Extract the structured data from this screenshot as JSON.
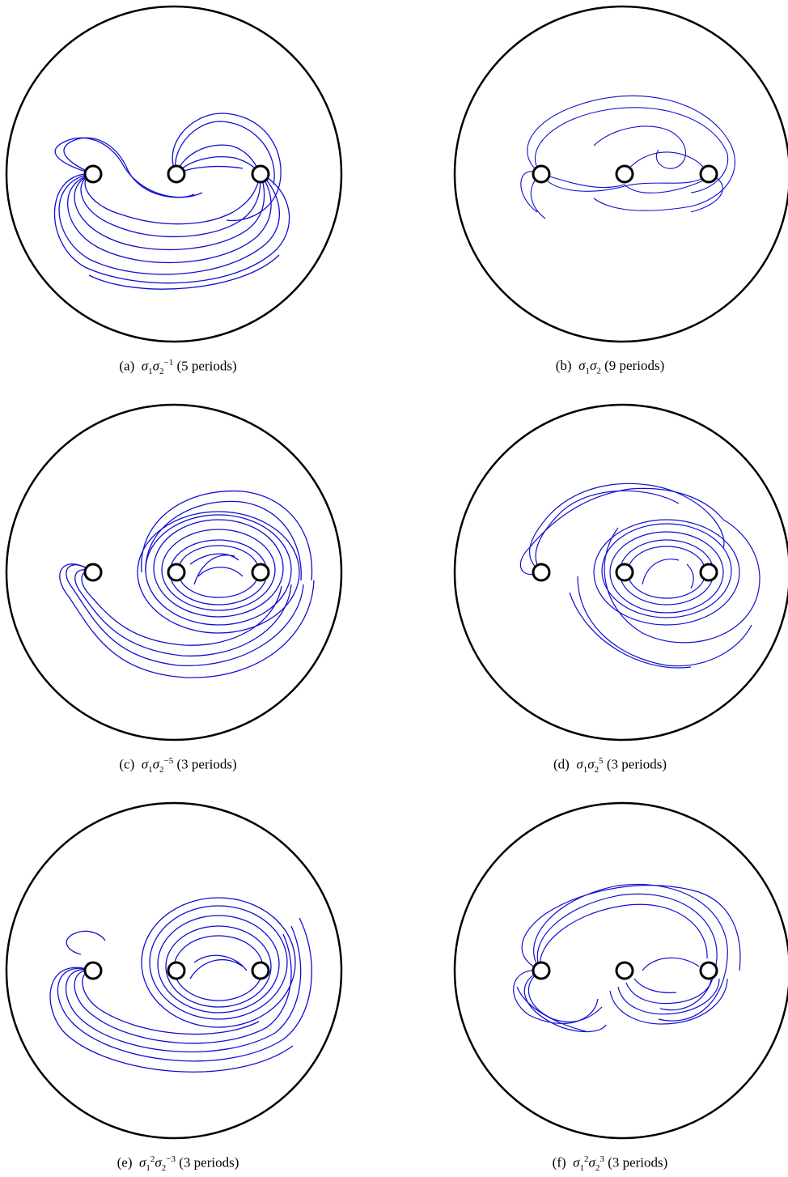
{
  "figure": {
    "stroke_color": "#1010d0",
    "boundary_color": "#000000",
    "panels": [
      {
        "id": "a",
        "label": "(a)",
        "braid_base": "σ",
        "periods_text": "(5 periods)",
        "word": [
          {
            "gen": "1",
            "exp": ""
          },
          {
            "gen": "2",
            "exp": "−1"
          }
        ]
      },
      {
        "id": "b",
        "label": "(b)",
        "braid_base": "σ",
        "periods_text": "(9 periods)",
        "word": [
          {
            "gen": "1",
            "exp": ""
          },
          {
            "gen": "2",
            "exp": ""
          }
        ]
      },
      {
        "id": "c",
        "label": "(c)",
        "braid_base": "σ",
        "periods_text": "(3 periods)",
        "word": [
          {
            "gen": "1",
            "exp": ""
          },
          {
            "gen": "2",
            "exp": "−5"
          }
        ]
      },
      {
        "id": "d",
        "label": "(d)",
        "braid_base": "σ",
        "periods_text": "(3 periods)",
        "word": [
          {
            "gen": "1",
            "exp": ""
          },
          {
            "gen": "2",
            "exp": "5"
          }
        ]
      },
      {
        "id": "e",
        "label": "(e)",
        "braid_base": "σ",
        "periods_text": "(3 periods)",
        "word": [
          {
            "gen": "1",
            "exp": "2"
          },
          {
            "gen": "2",
            "exp": "−3"
          }
        ]
      },
      {
        "id": "f",
        "label": "(f)",
        "braid_base": "σ",
        "periods_text": "(3 periods)",
        "word": [
          {
            "gen": "1",
            "exp": "2"
          },
          {
            "gen": "2",
            "exp": "3"
          }
        ]
      }
    ]
  }
}
